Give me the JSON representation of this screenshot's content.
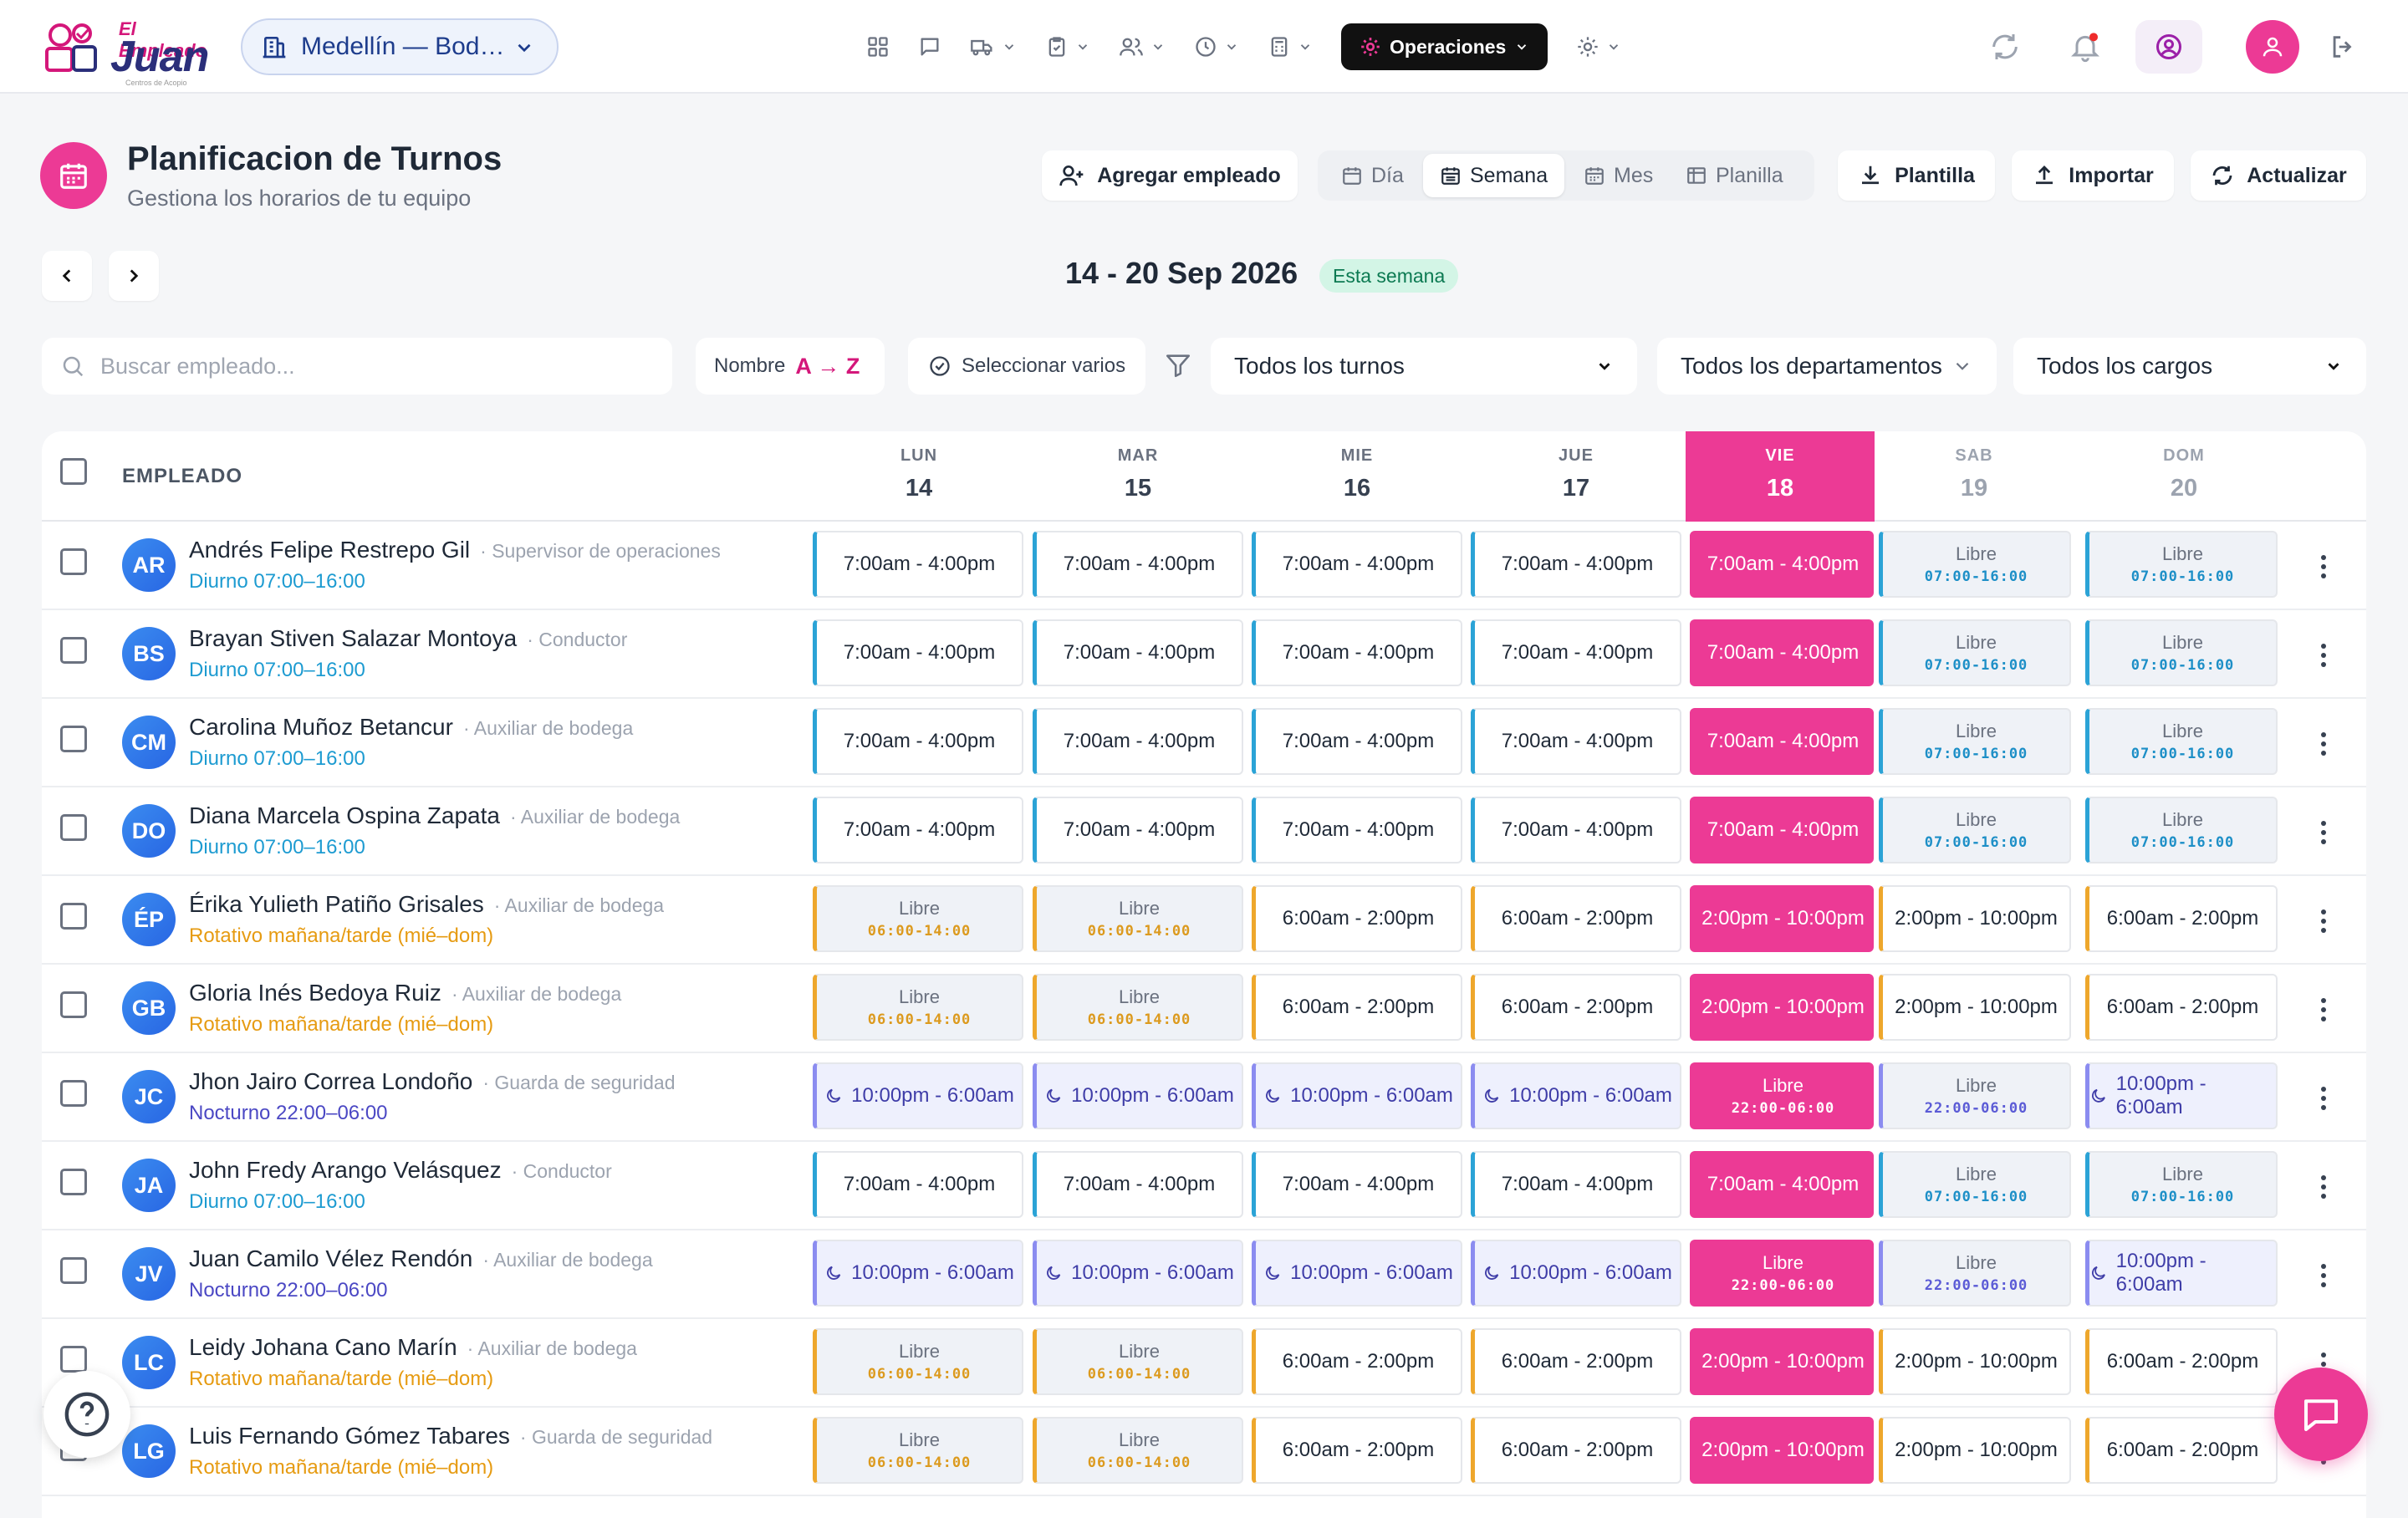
{
  "brand": {
    "line1": "El Empleado",
    "line2": "Juan",
    "sub": "Centros de Acopio"
  },
  "location": {
    "label": "Medellín — Bod…"
  },
  "nav": {
    "operations_label": "Operaciones"
  },
  "colors": {
    "accent": "#ec3a95",
    "brand_purple": "#2b2f7a",
    "day_shift": "#2ba3d6",
    "rotating_shift": "#eea72c",
    "night_shift": "#5b5bd6"
  },
  "page": {
    "title": "Planificacion de Turnos",
    "subtitle": "Gestiona los horarios de tu equipo"
  },
  "toolbar": {
    "add_employee": "Agregar empleado",
    "template": "Plantilla",
    "import": "Importar",
    "refresh": "Actualizar"
  },
  "views": {
    "day": "Día",
    "week": "Semana",
    "month": "Mes",
    "roster": "Planilla",
    "active": "week"
  },
  "range": {
    "label": "14 - 20 Sep 2026",
    "badge": "Esta semana"
  },
  "filters": {
    "search_placeholder": "Buscar empleado...",
    "sort_label": "Nombre",
    "sort_order": "A → Z",
    "select_multiple": "Seleccionar varios",
    "shifts": "Todos los turnos",
    "departments": "Todos los departamentos",
    "positions": "Todos los cargos"
  },
  "table": {
    "employee_header": "EMPLEADO",
    "days": [
      {
        "name": "LUN",
        "num": "14"
      },
      {
        "name": "MAR",
        "num": "15"
      },
      {
        "name": "MIE",
        "num": "16"
      },
      {
        "name": "JUE",
        "num": "17"
      },
      {
        "name": "VIE",
        "num": "18"
      },
      {
        "name": "SAB",
        "num": "19"
      },
      {
        "name": "DOM",
        "num": "20"
      }
    ],
    "today_index": 4,
    "free_label": "Libre",
    "rows": [
      {
        "initials": "AR",
        "name": "Andrés Felipe Restrepo Gil",
        "role": "· Supervisor de operaciones",
        "shift": "Diurno 07:00–16:00",
        "type": "blue",
        "cells": [
          {
            "t": "7:00am - 4:00pm"
          },
          {
            "t": "7:00am - 4:00pm"
          },
          {
            "t": "7:00am - 4:00pm"
          },
          {
            "t": "7:00am - 4:00pm"
          },
          {
            "t": "7:00am - 4:00pm"
          },
          {
            "free": true,
            "h": "07:00-16:00"
          },
          {
            "free": true,
            "h": "07:00-16:00"
          }
        ]
      },
      {
        "initials": "BS",
        "name": "Brayan Stiven Salazar Montoya",
        "role": "· Conductor",
        "shift": "Diurno 07:00–16:00",
        "type": "blue",
        "cells": [
          {
            "t": "7:00am - 4:00pm"
          },
          {
            "t": "7:00am - 4:00pm"
          },
          {
            "t": "7:00am - 4:00pm"
          },
          {
            "t": "7:00am - 4:00pm"
          },
          {
            "t": "7:00am - 4:00pm"
          },
          {
            "free": true,
            "h": "07:00-16:00"
          },
          {
            "free": true,
            "h": "07:00-16:00"
          }
        ]
      },
      {
        "initials": "CM",
        "name": "Carolina Muñoz Betancur",
        "role": "· Auxiliar de bodega",
        "shift": "Diurno 07:00–16:00",
        "type": "blue",
        "cells": [
          {
            "t": "7:00am - 4:00pm"
          },
          {
            "t": "7:00am - 4:00pm"
          },
          {
            "t": "7:00am - 4:00pm"
          },
          {
            "t": "7:00am - 4:00pm"
          },
          {
            "t": "7:00am - 4:00pm"
          },
          {
            "free": true,
            "h": "07:00-16:00"
          },
          {
            "free": true,
            "h": "07:00-16:00"
          }
        ]
      },
      {
        "initials": "DO",
        "name": "Diana Marcela Ospina Zapata",
        "role": "· Auxiliar de bodega",
        "shift": "Diurno 07:00–16:00",
        "type": "blue",
        "cells": [
          {
            "t": "7:00am - 4:00pm"
          },
          {
            "t": "7:00am - 4:00pm"
          },
          {
            "t": "7:00am - 4:00pm"
          },
          {
            "t": "7:00am - 4:00pm"
          },
          {
            "t": "7:00am - 4:00pm"
          },
          {
            "free": true,
            "h": "07:00-16:00"
          },
          {
            "free": true,
            "h": "07:00-16:00"
          }
        ]
      },
      {
        "initials": "ÉP",
        "name": "Érika Yulieth Patiño Grisales",
        "role": "· Auxiliar de bodega",
        "shift": "Rotativo mañana/tarde (mié–dom)",
        "type": "amber",
        "cells": [
          {
            "free": true,
            "h": "06:00-14:00"
          },
          {
            "free": true,
            "h": "06:00-14:00"
          },
          {
            "t": "6:00am - 2:00pm"
          },
          {
            "t": "6:00am - 2:00pm"
          },
          {
            "t": "2:00pm - 10:00pm"
          },
          {
            "t": "2:00pm - 10:00pm"
          },
          {
            "t": "6:00am - 2:00pm"
          }
        ]
      },
      {
        "initials": "GB",
        "name": "Gloria Inés Bedoya Ruiz",
        "role": "· Auxiliar de bodega",
        "shift": "Rotativo mañana/tarde (mié–dom)",
        "type": "amber",
        "cells": [
          {
            "free": true,
            "h": "06:00-14:00"
          },
          {
            "free": true,
            "h": "06:00-14:00"
          },
          {
            "t": "6:00am - 2:00pm"
          },
          {
            "t": "6:00am - 2:00pm"
          },
          {
            "t": "2:00pm - 10:00pm"
          },
          {
            "t": "2:00pm - 10:00pm"
          },
          {
            "t": "6:00am - 2:00pm"
          }
        ]
      },
      {
        "initials": "JC",
        "name": "Jhon Jairo Correa Londoño",
        "role": "· Guarda de seguridad",
        "shift": "Nocturno 22:00–06:00",
        "type": "purple",
        "cells": [
          {
            "t": "10:00pm - 6:00am",
            "night": true
          },
          {
            "t": "10:00pm - 6:00am",
            "night": true
          },
          {
            "t": "10:00pm - 6:00am",
            "night": true
          },
          {
            "t": "10:00pm - 6:00am",
            "night": true
          },
          {
            "free": true,
            "h": "22:00-06:00"
          },
          {
            "free": true,
            "h": "22:00-06:00"
          },
          {
            "t": "10:00pm - 6:00am",
            "night": true
          }
        ]
      },
      {
        "initials": "JA",
        "name": "John Fredy Arango Velásquez",
        "role": "· Conductor",
        "shift": "Diurno 07:00–16:00",
        "type": "blue",
        "cells": [
          {
            "t": "7:00am - 4:00pm"
          },
          {
            "t": "7:00am - 4:00pm"
          },
          {
            "t": "7:00am - 4:00pm"
          },
          {
            "t": "7:00am - 4:00pm"
          },
          {
            "t": "7:00am - 4:00pm"
          },
          {
            "free": true,
            "h": "07:00-16:00"
          },
          {
            "free": true,
            "h": "07:00-16:00"
          }
        ]
      },
      {
        "initials": "JV",
        "name": "Juan Camilo Vélez Rendón",
        "role": "· Auxiliar de bodega",
        "shift": "Nocturno 22:00–06:00",
        "type": "purple",
        "cells": [
          {
            "t": "10:00pm - 6:00am",
            "night": true
          },
          {
            "t": "10:00pm - 6:00am",
            "night": true
          },
          {
            "t": "10:00pm - 6:00am",
            "night": true
          },
          {
            "t": "10:00pm - 6:00am",
            "night": true
          },
          {
            "free": true,
            "h": "22:00-06:00"
          },
          {
            "free": true,
            "h": "22:00-06:00"
          },
          {
            "t": "10:00pm - 6:00am",
            "night": true
          }
        ]
      },
      {
        "initials": "LC",
        "name": "Leidy Johana Cano Marín",
        "role": "· Auxiliar de bodega",
        "shift": "Rotativo mañana/tarde (mié–dom)",
        "type": "amber",
        "cells": [
          {
            "free": true,
            "h": "06:00-14:00"
          },
          {
            "free": true,
            "h": "06:00-14:00"
          },
          {
            "t": "6:00am - 2:00pm"
          },
          {
            "t": "6:00am - 2:00pm"
          },
          {
            "t": "2:00pm - 10:00pm"
          },
          {
            "t": "2:00pm - 10:00pm"
          },
          {
            "t": "6:00am - 2:00pm"
          }
        ]
      },
      {
        "initials": "LG",
        "name": "Luis Fernando Gómez Tabares",
        "role": "· Guarda de seguridad",
        "shift": "Rotativo mañana/tarde (mié–dom)",
        "type": "amber",
        "cells": [
          {
            "free": true,
            "h": "06:00-14:00"
          },
          {
            "free": true,
            "h": "06:00-14:00"
          },
          {
            "t": "6:00am - 2:00pm"
          },
          {
            "t": "6:00am - 2:00pm"
          },
          {
            "t": "2:00pm - 10:00pm"
          },
          {
            "t": "2:00pm - 10:00pm"
          },
          {
            "t": "6:00am - 2:00pm"
          }
        ]
      }
    ]
  }
}
